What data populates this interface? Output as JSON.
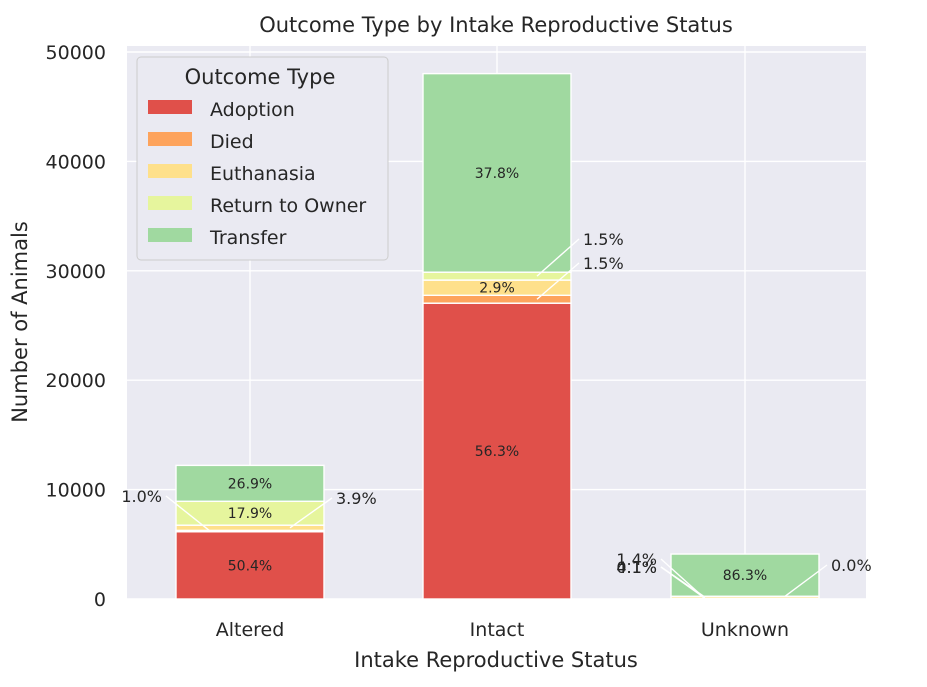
{
  "chart_data": {
    "type": "bar",
    "stacked": true,
    "title": "Outcome Type by Intake Reproductive Status",
    "xlabel": "Intake Reproductive Status",
    "ylabel": "Number of Animals",
    "ylim": [
      0,
      50000
    ],
    "yticks": [
      "0",
      "10000",
      "20000",
      "30000",
      "40000",
      "50000"
    ],
    "grid": true,
    "categories": [
      "Altered",
      "Intact",
      "Unknown"
    ],
    "legend": {
      "title": "Outcome Type",
      "placement": "upper-left"
    },
    "series": [
      {
        "name": "Adoption",
        "color": "#e0504a",
        "values": [
          6150,
          27040,
          63
        ],
        "labels": [
          "50.4%",
          "56.3%",
          "1.4%"
        ]
      },
      {
        "name": "Died",
        "color": "#fda35c",
        "values": [
          122,
          720,
          5
        ],
        "labels": [
          "1.0%",
          "1.5%",
          "0.1%"
        ]
      },
      {
        "name": "Euthanasia",
        "color": "#fee08b",
        "values": [
          476,
          1393,
          182
        ],
        "labels": [
          "3.9%",
          "2.9%",
          "4.1%"
        ]
      },
      {
        "name": "Return to Owner",
        "color": "#e6f59d",
        "values": [
          2184,
          720,
          0
        ],
        "labels": [
          "17.9%",
          "1.5%",
          "0.0%"
        ]
      },
      {
        "name": "Transfer",
        "color": "#a0d9a0",
        "values": [
          3282,
          18150,
          3860
        ],
        "labels": [
          "26.9%",
          "37.8%",
          "86.3%"
        ]
      }
    ]
  }
}
